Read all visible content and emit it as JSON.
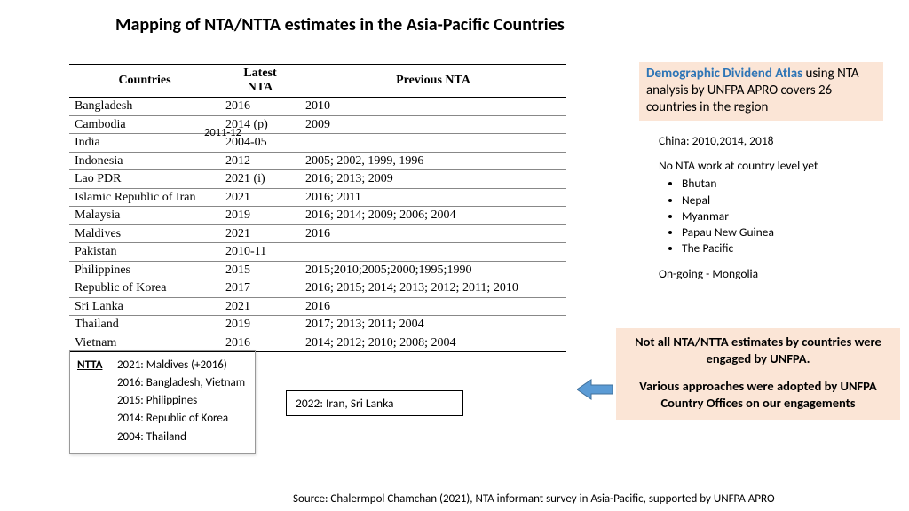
{
  "title": "Mapping of NTA/NTTA estimates in the Asia-Pacific Countries",
  "table": {
    "headers": [
      "Countries",
      "Latest NTA",
      "Previous NTA"
    ],
    "rows": [
      [
        "Bangladesh",
        "2016",
        "2010"
      ],
      [
        "Cambodia",
        "2014 (p)",
        "2009"
      ],
      [
        "India",
        "2004-05",
        ""
      ],
      [
        "Indonesia",
        "2012",
        "2005; 2002, 1999, 1996"
      ],
      [
        "Lao PDR",
        "2021 (i)",
        "2016; 2013; 2009"
      ],
      [
        "Islamic Republic of Iran",
        "2021",
        "2016; 2011"
      ],
      [
        "Malaysia",
        "2019",
        "2016; 2014; 2009; 2006; 2004"
      ],
      [
        "Maldives",
        "2021",
        "2016"
      ],
      [
        "Pakistan",
        "2010-11",
        ""
      ],
      [
        "Philippines",
        "2015",
        "2015;2010;2005;2000;1995;1990"
      ],
      [
        "Republic of Korea",
        "2017",
        "2016; 2015; 2014; 2013; 2012; 2011; 2010"
      ],
      [
        "Sri Lanka",
        "2021",
        "2016"
      ],
      [
        "Thailand",
        "2019",
        "2017; 2013; 2011; 2004"
      ],
      [
        "Vietnam",
        "2016",
        "2014; 2012; 2010; 2008; 2004"
      ]
    ],
    "india_overlay": "2011-12"
  },
  "ntta": {
    "label": "NTTA",
    "lines": [
      "2021: Maldives (+2016)",
      "2016: Bangladesh, Vietnam",
      "2015: Philippines",
      "2014: Republic of Korea",
      "2004: Thailand"
    ]
  },
  "callout_2022": "2022: Iran, Sri Lanka",
  "atlas": {
    "link_text": "Demographic Dividend Atlas",
    "rest": " using NTA analysis by UNFPA APRO covers 26 countries in the region"
  },
  "info": {
    "china": "China: 2010,2014, 2018",
    "no_nta_header": "No NTA work at country level yet",
    "no_nta_list": [
      "Bhutan",
      "Nepal",
      "Myanmar",
      "Papau New Guinea",
      "The Pacific"
    ],
    "ongoing": "On-going - Mongolia"
  },
  "engage": {
    "line1": "Not all NTA/NTTA estimates by countries were engaged by UNFPA.",
    "line2": "Various approaches were adopted by UNFPA Country Offices on our engagements"
  },
  "source": "Source: Chalermpol Chamchan (2021), NTA informant survey in Asia-Pacific, supported by UNFPA APRO",
  "colors": {
    "peach": "#fbe5d6",
    "link": "#2e75b6",
    "arrow_fill": "#5b9bd5",
    "arrow_stroke": "#41719c"
  }
}
